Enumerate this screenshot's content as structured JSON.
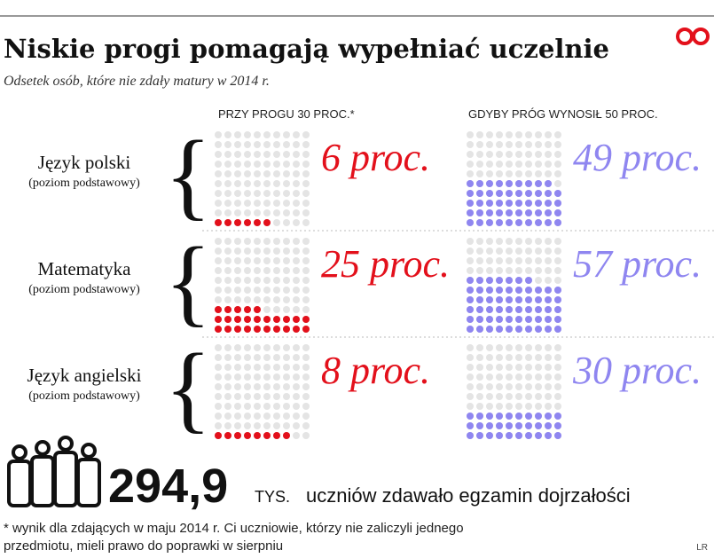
{
  "chart_data": {
    "type": "waffle",
    "title": "Niskie progi pomagają wypełniać uczelnie",
    "subtitle": "Odsetek osób, które nie zdały matury w 2014 r.",
    "categories": [
      "Język polski",
      "Matematyka",
      "Język angielski"
    ],
    "category_notes": [
      "(poziom podstawowy)",
      "(poziom podstawowy)",
      "(poziom podstawowy)"
    ],
    "series": [
      {
        "name": "PRZY PROGU 30 PROC.*",
        "color": "#e3101b",
        "values": [
          6,
          25,
          8
        ],
        "value_labels": [
          "6 proc.",
          "25 proc.",
          "8 proc."
        ]
      },
      {
        "name": "GDYBY PRÓG WYNOSIŁ 50 PROC.",
        "color": "#8f86f0",
        "values": [
          49,
          57,
          30
        ],
        "value_labels": [
          "49 proc.",
          "57 proc.",
          "30 proc."
        ]
      }
    ],
    "total_value": "294,9",
    "total_unit": "TYS.",
    "total_label": "uczniów zdawało egzamin dojrzałości",
    "footnote": [
      "* wynik dla zdających w maju 2014 r. Ci uczniowie, którzy nie zaliczyli jednego",
      "przedmiotu, mieli prawo do poprawki w sierpniu"
    ],
    "credit": "LR"
  }
}
